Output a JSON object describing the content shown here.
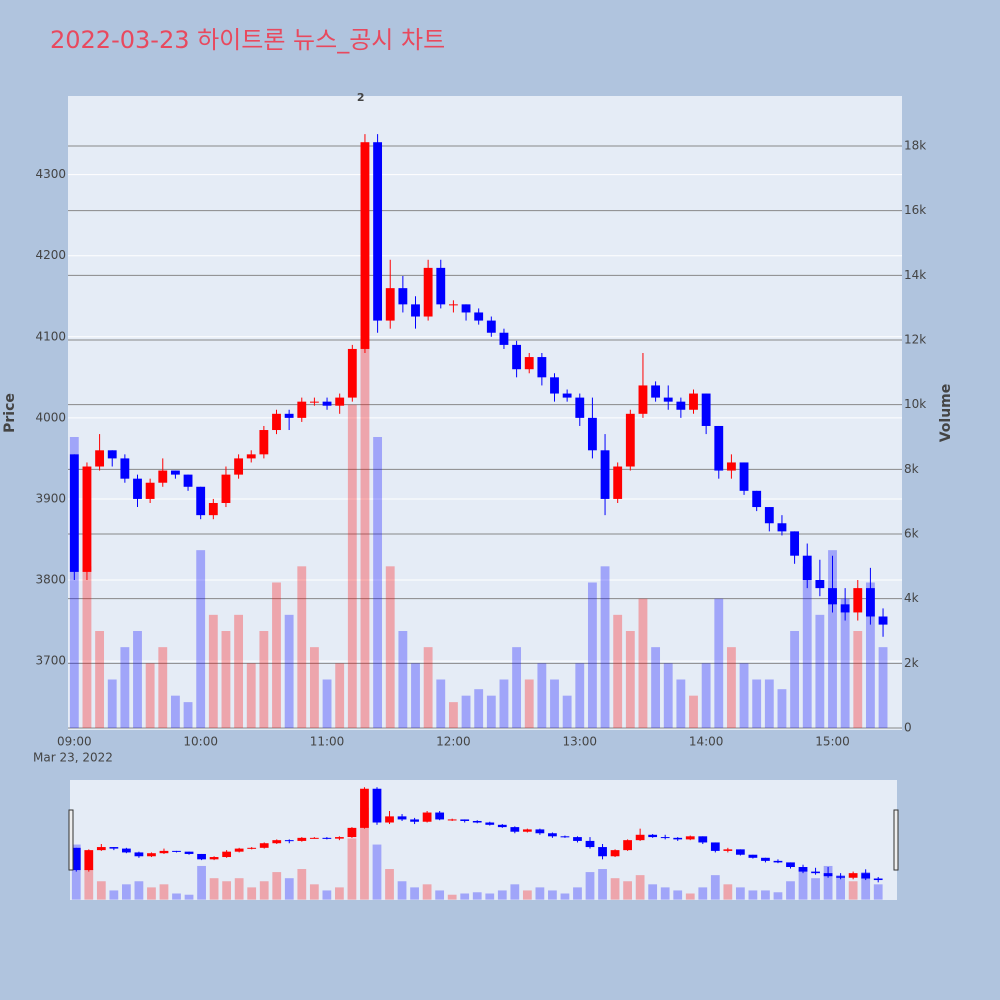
{
  "chart_data": {
    "type": "candlestick",
    "title": "2022-03-23 하이트론 뉴스_공시 차트",
    "y_label": "Price",
    "y2_label": "Volume",
    "x_date_label": "Mar 23, 2022",
    "annotation": {
      "text": "2",
      "x": "2022-03-23 11:16"
    },
    "increasing_color": "#ff0000",
    "decreasing_color": "#0000ff",
    "x": [
      "2022-03-23 09:00",
      "2022-03-23 09:06",
      "2022-03-23 09:12",
      "2022-03-23 09:18",
      "2022-03-23 09:24",
      "2022-03-23 09:30",
      "2022-03-23 09:36",
      "2022-03-23 09:42",
      "2022-03-23 09:48",
      "2022-03-23 09:54",
      "2022-03-23 10:00",
      "2022-03-23 10:06",
      "2022-03-23 10:12",
      "2022-03-23 10:18",
      "2022-03-23 10:24",
      "2022-03-23 10:30",
      "2022-03-23 10:36",
      "2022-03-23 10:42",
      "2022-03-23 10:48",
      "2022-03-23 10:54",
      "2022-03-23 11:00",
      "2022-03-23 11:06",
      "2022-03-23 11:12",
      "2022-03-23 11:18",
      "2022-03-23 11:24",
      "2022-03-23 11:30",
      "2022-03-23 11:36",
      "2022-03-23 11:42",
      "2022-03-23 11:48",
      "2022-03-23 11:54",
      "2022-03-23 12:00",
      "2022-03-23 12:06",
      "2022-03-23 12:12",
      "2022-03-23 12:18",
      "2022-03-23 12:24",
      "2022-03-23 12:30",
      "2022-03-23 12:36",
      "2022-03-23 12:42",
      "2022-03-23 12:48",
      "2022-03-23 12:54",
      "2022-03-23 13:00",
      "2022-03-23 13:06",
      "2022-03-23 13:12",
      "2022-03-23 13:18",
      "2022-03-23 13:24",
      "2022-03-23 13:30",
      "2022-03-23 13:36",
      "2022-03-23 13:42",
      "2022-03-23 13:48",
      "2022-03-23 13:54",
      "2022-03-23 14:00",
      "2022-03-23 14:06",
      "2022-03-23 14:12",
      "2022-03-23 14:18",
      "2022-03-23 14:24",
      "2022-03-23 14:30",
      "2022-03-23 14:36",
      "2022-03-23 14:42",
      "2022-03-23 14:48",
      "2022-03-23 14:54",
      "2022-03-23 15:00",
      "2022-03-23 15:06",
      "2022-03-23 15:12",
      "2022-03-23 15:18",
      "2022-03-23 15:24"
    ],
    "open": [
      3955,
      3810,
      3940,
      3960,
      3950,
      3925,
      3900,
      3920,
      3935,
      3930,
      3915,
      3880,
      3895,
      3930,
      3950,
      3955,
      3985,
      4005,
      4000,
      4020,
      4020,
      4015,
      4025,
      4085,
      4340,
      4120,
      4160,
      4140,
      4125,
      4185,
      4140,
      4140,
      4130,
      4120,
      4105,
      4090,
      4060,
      4075,
      4050,
      4030,
      4025,
      4000,
      3960,
      3900,
      3940,
      4005,
      4040,
      4025,
      4020,
      4010,
      4030,
      3990,
      3935,
      3945,
      3910,
      3890,
      3870,
      3860,
      3830,
      3800,
      3790,
      3770,
      3760,
      3790,
      3755
    ],
    "high": [
      3955,
      3945,
      3980,
      3960,
      3955,
      3930,
      3925,
      3950,
      3935,
      3930,
      3915,
      3900,
      3940,
      3955,
      3960,
      3990,
      4010,
      4010,
      4025,
      4025,
      4025,
      4030,
      4090,
      4350,
      4350,
      4195,
      4175,
      4150,
      4195,
      4195,
      4145,
      4140,
      4135,
      4125,
      4110,
      4095,
      4080,
      4080,
      4055,
      4035,
      4030,
      4025,
      3980,
      3945,
      4010,
      4080,
      4045,
      4040,
      4025,
      4035,
      4030,
      3990,
      3955,
      3945,
      3910,
      3890,
      3880,
      3860,
      3845,
      3825,
      3830,
      3790,
      3800,
      3815,
      3765
    ],
    "low": [
      3800,
      3800,
      3935,
      3940,
      3920,
      3890,
      3895,
      3915,
      3925,
      3910,
      3875,
      3875,
      3890,
      3925,
      3945,
      3950,
      3980,
      3985,
      3995,
      4015,
      4010,
      4005,
      4020,
      4080,
      4105,
      4110,
      4130,
      4110,
      4120,
      4135,
      4130,
      4120,
      4115,
      4100,
      4085,
      4050,
      4055,
      4040,
      4020,
      4020,
      3990,
      3950,
      3880,
      3895,
      3935,
      4000,
      4020,
      4010,
      4000,
      4005,
      3980,
      3925,
      3925,
      3905,
      3885,
      3860,
      3855,
      3820,
      3790,
      3780,
      3760,
      3750,
      3750,
      3745,
      3730
    ],
    "close": [
      3810,
      3940,
      3960,
      3950,
      3925,
      3900,
      3920,
      3935,
      3930,
      3915,
      3880,
      3895,
      3930,
      3950,
      3955,
      3985,
      4005,
      4000,
      4020,
      4020,
      4015,
      4025,
      4085,
      4340,
      4120,
      4160,
      4140,
      4125,
      4185,
      4140,
      4140,
      4130,
      4120,
      4105,
      4090,
      4060,
      4075,
      4050,
      4030,
      4025,
      4000,
      3960,
      3900,
      3940,
      4005,
      4040,
      4025,
      4020,
      4010,
      4030,
      3990,
      3935,
      3945,
      3910,
      3890,
      3870,
      3860,
      3830,
      3800,
      3790,
      3770,
      3760,
      3790,
      3755,
      3745
    ],
    "volume": [
      9000,
      5000,
      3000,
      1500,
      2500,
      3000,
      2000,
      2500,
      1000,
      800,
      5500,
      3500,
      3000,
      3500,
      2000,
      3000,
      4500,
      3500,
      5000,
      2500,
      1500,
      2000,
      10000,
      15000,
      9000,
      5000,
      3000,
      2000,
      2500,
      1500,
      800,
      1000,
      1200,
      1000,
      1500,
      2500,
      1500,
      2000,
      1500,
      1000,
      2000,
      4500,
      5000,
      3500,
      3000,
      4000,
      2500,
      2000,
      1500,
      1000,
      2000,
      4000,
      2500,
      2000,
      1500,
      1500,
      1200,
      3000,
      5000,
      3500,
      5500,
      4000,
      3000,
      4500,
      2500
    ],
    "xlim": [
      "2022-03-23 08:57",
      "2022-03-23 15:33"
    ],
    "xticks": [
      {
        "value": "2022-03-23 09:00",
        "label": "09:00"
      },
      {
        "value": "2022-03-23 10:00",
        "label": "10:00"
      },
      {
        "value": "2022-03-23 11:00",
        "label": "11:00"
      },
      {
        "value": "2022-03-23 12:00",
        "label": "12:00"
      },
      {
        "value": "2022-03-23 13:00",
        "label": "13:00"
      },
      {
        "value": "2022-03-23 14:00",
        "label": "14:00"
      },
      {
        "value": "2022-03-23 15:00",
        "label": "15:00"
      }
    ],
    "ylim": [
      3615,
      4397
    ],
    "yticks": [
      3700,
      3800,
      3900,
      4000,
      4100,
      4200,
      4300
    ],
    "y2lim": [
      -62,
      19546
    ],
    "y2ticks": [
      0,
      {
        "value": 2000,
        "label": "2k"
      },
      {
        "value": 4000,
        "label": "4k"
      },
      {
        "value": 6000,
        "label": "6k"
      },
      {
        "value": 8000,
        "label": "8k"
      },
      {
        "value": 10000,
        "label": "10k"
      },
      {
        "value": 12000,
        "label": "12k"
      },
      {
        "value": 14000,
        "label": "14k"
      },
      {
        "value": 16000,
        "label": "16k"
      },
      {
        "value": 18000,
        "label": "18k"
      }
    ],
    "grid": true,
    "range_slider": true
  }
}
